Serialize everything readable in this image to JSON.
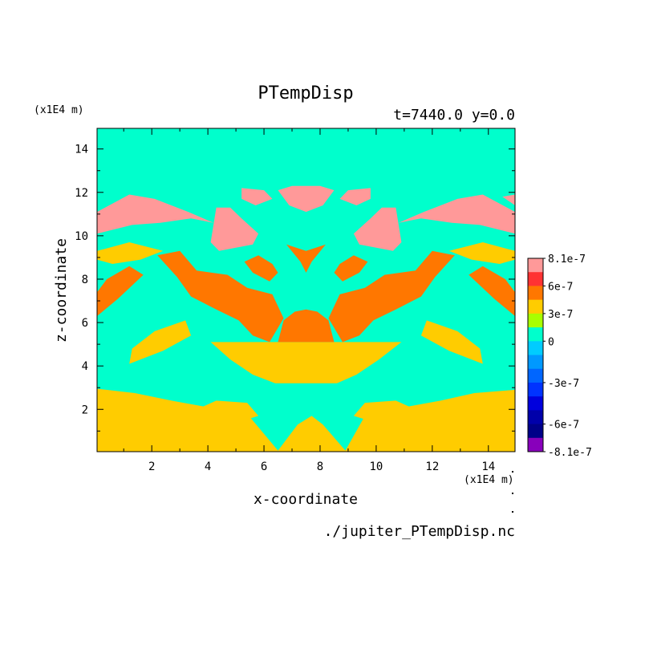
{
  "chart_data": {
    "type": "heatmap",
    "title": "PTempDisp",
    "subtitle": "t=7440.0 y=0.0",
    "xlabel": "x-coordinate",
    "ylabel": "z-coordinate",
    "x_unit": "(x1E4 m)",
    "y_unit": "(x1E4 m)",
    "source_file": "./jupiter_PTempDisp.nc",
    "xlim": [
      0.05,
      14.95
    ],
    "ylim": [
      0.05,
      14.95
    ],
    "x_ticks": [
      2,
      4,
      6,
      8,
      10,
      12,
      14
    ],
    "y_ticks": [
      2,
      4,
      6,
      8,
      10,
      12,
      14
    ],
    "colorbar": {
      "labels": [
        "8.1e-7",
        "6e-7",
        "3e-7",
        "0",
        "-3e-7",
        "-6e-7",
        "-8.1e-7"
      ],
      "levels": [
        8.1e-07,
        7e-07,
        6e-07,
        4.5e-07,
        3e-07,
        1.5e-07,
        0,
        -1e-07,
        -2e-07,
        -3e-07,
        -4e-07,
        -5e-07,
        -6e-07,
        -7e-07,
        -8.1e-07
      ],
      "colors": [
        "#ff9999",
        "#ff3333",
        "#ff7700",
        "#ffcc00",
        "#a8ff00",
        "#00ffcc",
        "#00ccff",
        "#0099ff",
        "#0066ff",
        "#0033ff",
        "#0000dd",
        "#0000aa",
        "#000088",
        "#8800bb"
      ]
    },
    "regions": [
      {
        "value": 4e-07,
        "points": [
          [
            0.05,
            0.05
          ],
          [
            14.95,
            0.05
          ],
          [
            14.95,
            2.9
          ],
          [
            13.5,
            2.75
          ],
          [
            12.3,
            2.4
          ],
          [
            11,
            2.1
          ],
          [
            9.6,
            1.7
          ],
          [
            8.9,
            0.1
          ],
          [
            8.1,
            1.3
          ],
          [
            7.7,
            1.7
          ],
          [
            7.2,
            1.3
          ],
          [
            6.5,
            0.1
          ],
          [
            5.4,
            1.8
          ],
          [
            4,
            2.1
          ],
          [
            2.7,
            2.4
          ],
          [
            1.4,
            2.75
          ],
          [
            0.05,
            2.95
          ]
        ]
      },
      {
        "value": 4e-07,
        "points": [
          [
            6.4,
            3.2
          ],
          [
            8.6,
            3.2
          ],
          [
            9.3,
            3.6
          ],
          [
            10.1,
            4.3
          ],
          [
            10.9,
            5.1
          ],
          [
            4.1,
            5.1
          ],
          [
            4.8,
            4.3
          ],
          [
            5.6,
            3.6
          ]
        ]
      },
      {
        "value": 4e-07,
        "points": [
          [
            3.6,
            1.4
          ],
          [
            4.8,
            1.3
          ],
          [
            5.8,
            1.7
          ],
          [
            5.4,
            2.3
          ],
          [
            4.3,
            2.4
          ],
          [
            3.6,
            2
          ]
        ]
      },
      {
        "value": 4e-07,
        "points": [
          [
            9.2,
            1.7
          ],
          [
            10.2,
            1.3
          ],
          [
            11.4,
            1.4
          ],
          [
            11.4,
            2
          ],
          [
            10.7,
            2.4
          ],
          [
            9.6,
            2.3
          ]
        ]
      },
      {
        "value": 4e-07,
        "points": [
          [
            1.2,
            4.1
          ],
          [
            2.4,
            4.7
          ],
          [
            3.4,
            5.4
          ],
          [
            3.2,
            6.1
          ],
          [
            2.1,
            5.6
          ],
          [
            1.3,
            4.8
          ]
        ]
      },
      {
        "value": 4e-07,
        "points": [
          [
            13.8,
            4.1
          ],
          [
            12.6,
            4.7
          ],
          [
            11.6,
            5.4
          ],
          [
            11.8,
            6.1
          ],
          [
            12.9,
            5.6
          ],
          [
            13.7,
            4.8
          ]
        ]
      },
      {
        "value": 4e-07,
        "points": [
          [
            0.05,
            9.3
          ],
          [
            1.2,
            9.7
          ],
          [
            2.4,
            9.3
          ],
          [
            1.6,
            8.9
          ],
          [
            0.6,
            8.7
          ],
          [
            0.05,
            8.9
          ]
        ]
      },
      {
        "value": 4e-07,
        "points": [
          [
            14.95,
            9.3
          ],
          [
            13.8,
            9.7
          ],
          [
            12.6,
            9.3
          ],
          [
            13.4,
            8.9
          ],
          [
            14.4,
            8.7
          ],
          [
            14.95,
            8.9
          ]
        ]
      },
      {
        "value": 6e-07,
        "points": [
          [
            2.2,
            9.1
          ],
          [
            2.9,
            8.1
          ],
          [
            3.4,
            7.2
          ],
          [
            4.3,
            6.6
          ],
          [
            5.1,
            6.1
          ],
          [
            5.6,
            5.4
          ],
          [
            6.2,
            5.1
          ],
          [
            6.7,
            6.2
          ],
          [
            6.3,
            7.3
          ],
          [
            5.4,
            7.6
          ],
          [
            4.7,
            8.2
          ],
          [
            3.6,
            8.4
          ],
          [
            3,
            9.3
          ]
        ]
      },
      {
        "value": 6e-07,
        "points": [
          [
            12.8,
            9.1
          ],
          [
            12.1,
            8.1
          ],
          [
            11.6,
            7.2
          ],
          [
            10.7,
            6.6
          ],
          [
            9.9,
            6.1
          ],
          [
            9.4,
            5.4
          ],
          [
            8.8,
            5.1
          ],
          [
            8.3,
            6.2
          ],
          [
            8.7,
            7.3
          ],
          [
            9.6,
            7.6
          ],
          [
            10.3,
            8.2
          ],
          [
            11.4,
            8.4
          ],
          [
            12,
            9.3
          ]
        ]
      },
      {
        "value": 6e-07,
        "points": [
          [
            6.5,
            5.1
          ],
          [
            8.5,
            5.1
          ],
          [
            8.3,
            6.1
          ],
          [
            7.9,
            6.5
          ],
          [
            7.5,
            6.6
          ],
          [
            7.1,
            6.5
          ],
          [
            6.7,
            6.1
          ]
        ]
      },
      {
        "value": 6e-07,
        "points": [
          [
            6.8,
            9.6
          ],
          [
            7.3,
            8.8
          ],
          [
            7.5,
            8.3
          ],
          [
            7.7,
            8.8
          ],
          [
            8.2,
            9.6
          ],
          [
            7.5,
            9.3
          ]
        ]
      },
      {
        "value": 6e-07,
        "points": [
          [
            0.05,
            6.3
          ],
          [
            0.8,
            7.1
          ],
          [
            1.7,
            8.2
          ],
          [
            1.2,
            8.6
          ],
          [
            0.4,
            8
          ],
          [
            0.05,
            7.4
          ]
        ]
      },
      {
        "value": 6e-07,
        "points": [
          [
            14.95,
            6.3
          ],
          [
            14.2,
            7.1
          ],
          [
            13.3,
            8.2
          ],
          [
            13.8,
            8.6
          ],
          [
            14.6,
            8
          ],
          [
            14.95,
            7.4
          ]
        ]
      },
      {
        "value": 6e-07,
        "points": [
          [
            5.8,
            9.1
          ],
          [
            6.3,
            8.7
          ],
          [
            6.5,
            8.3
          ],
          [
            6.2,
            7.9
          ],
          [
            5.6,
            8.3
          ],
          [
            5.3,
            8.8
          ]
        ]
      },
      {
        "value": 6e-07,
        "points": [
          [
            9.2,
            9.1
          ],
          [
            8.7,
            8.7
          ],
          [
            8.5,
            8.3
          ],
          [
            8.8,
            7.9
          ],
          [
            9.4,
            8.3
          ],
          [
            9.7,
            8.8
          ]
        ]
      },
      {
        "value": 7.5e-07,
        "points": [
          [
            0.05,
            11.1
          ],
          [
            1.2,
            11.9
          ],
          [
            2.1,
            11.7
          ],
          [
            3.3,
            11.1
          ],
          [
            4.2,
            10.6
          ],
          [
            3.4,
            10.8
          ],
          [
            2.3,
            10.6
          ],
          [
            1.3,
            10.5
          ],
          [
            0.05,
            10.1
          ]
        ]
      },
      {
        "value": 7.5e-07,
        "points": [
          [
            14.95,
            11.1
          ],
          [
            13.8,
            11.9
          ],
          [
            12.9,
            11.7
          ],
          [
            11.7,
            11.1
          ],
          [
            10.8,
            10.6
          ],
          [
            11.6,
            10.8
          ],
          [
            12.7,
            10.6
          ],
          [
            13.7,
            10.5
          ],
          [
            14.95,
            10.1
          ]
        ]
      },
      {
        "value": 7.5e-07,
        "points": [
          [
            4.3,
            11.3
          ],
          [
            4.1,
            9.7
          ],
          [
            4.4,
            9.3
          ],
          [
            5.6,
            9.6
          ],
          [
            5.8,
            10.1
          ],
          [
            5.2,
            10.8
          ],
          [
            4.8,
            11.3
          ]
        ]
      },
      {
        "value": 7.5e-07,
        "points": [
          [
            10.7,
            11.3
          ],
          [
            10.9,
            9.7
          ],
          [
            10.6,
            9.3
          ],
          [
            9.4,
            9.6
          ],
          [
            9.2,
            10.1
          ],
          [
            9.8,
            10.8
          ],
          [
            10.2,
            11.3
          ]
        ]
      },
      {
        "value": 7.5e-07,
        "points": [
          [
            6.5,
            12.1
          ],
          [
            7,
            12.3
          ],
          [
            7.5,
            12.3
          ],
          [
            8,
            12.3
          ],
          [
            8.5,
            12.1
          ],
          [
            8.1,
            11.4
          ],
          [
            7.5,
            11.1
          ],
          [
            6.9,
            11.4
          ]
        ]
      },
      {
        "value": 7.5e-07,
        "points": [
          [
            5.2,
            12.2
          ],
          [
            6,
            12.1
          ],
          [
            6.3,
            11.7
          ],
          [
            5.7,
            11.4
          ],
          [
            5.2,
            11.7
          ]
        ]
      },
      {
        "value": 7.5e-07,
        "points": [
          [
            9.8,
            12.2
          ],
          [
            9,
            12.1
          ],
          [
            8.7,
            11.7
          ],
          [
            9.3,
            11.4
          ],
          [
            9.8,
            11.7
          ]
        ]
      },
      {
        "value": 7.5e-07,
        "points": [
          [
            14.5,
            11.8
          ],
          [
            14.95,
            11.9
          ],
          [
            14.95,
            11.4
          ]
        ]
      }
    ]
  }
}
